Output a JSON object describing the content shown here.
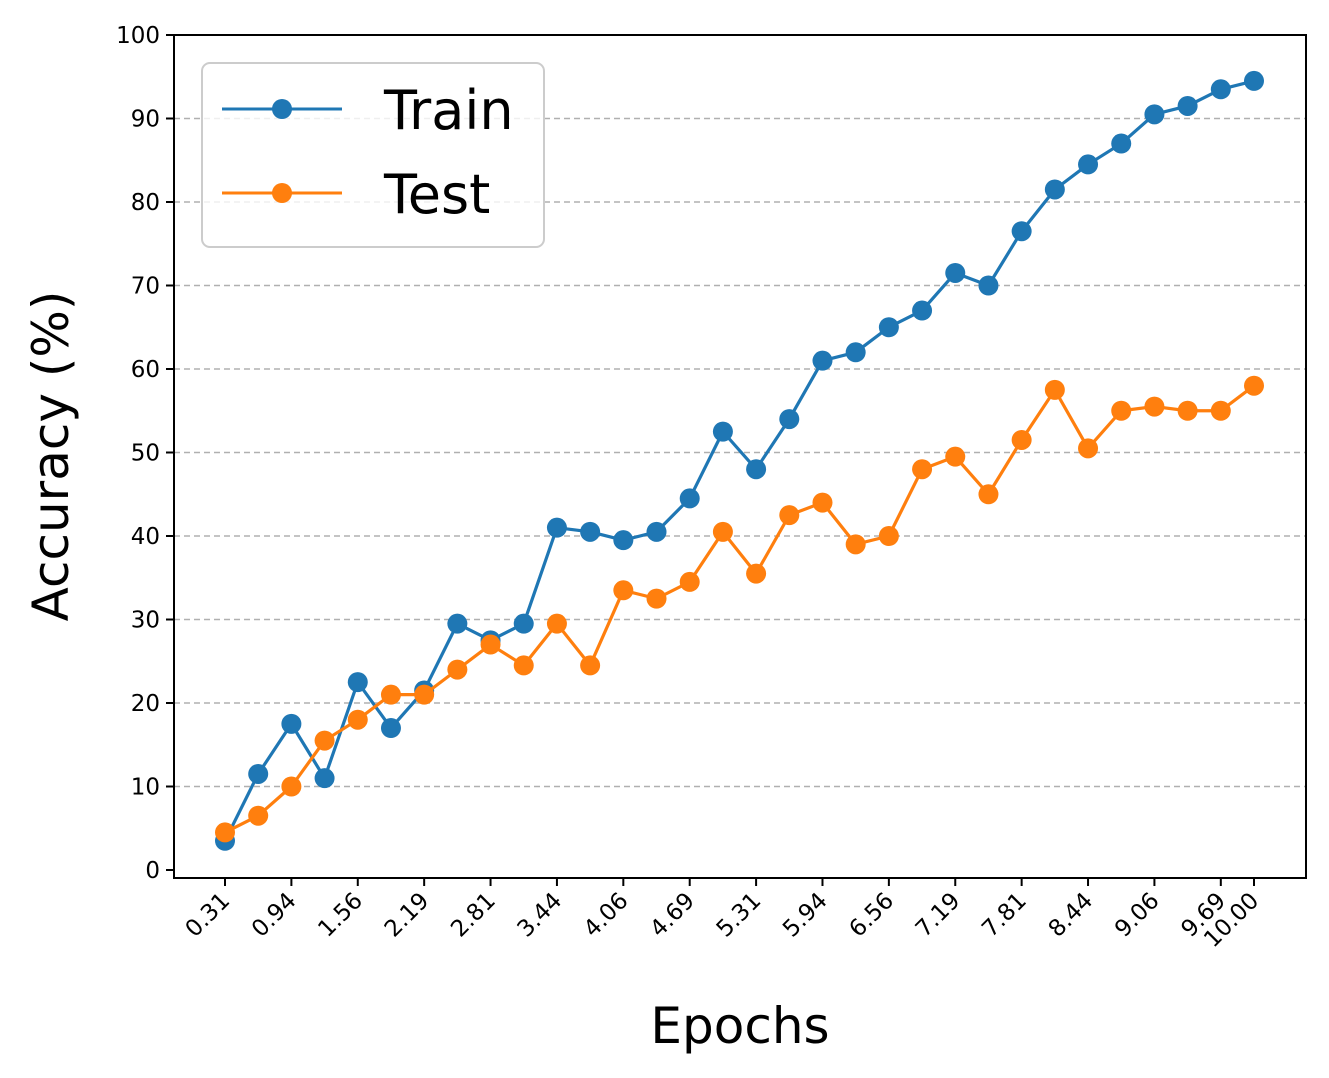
{
  "chart_data": {
    "type": "line",
    "title": "",
    "xlabel": "Epochs",
    "ylabel": "Accuracy (%)",
    "ylim": [
      0,
      100
    ],
    "yticks": [
      "0",
      "10",
      "20",
      "30",
      "40",
      "50",
      "60",
      "70",
      "80",
      "90",
      "100"
    ],
    "xticks": [
      "0.31",
      "0.94",
      "1.56",
      "2.19",
      "2.81",
      "3.44",
      "4.06",
      "4.69",
      "5.31",
      "5.94",
      "6.56",
      "7.19",
      "7.81",
      "8.44",
      "9.06",
      "9.69",
      "10.00"
    ],
    "xtick_values": [
      0.3125,
      0.9375,
      1.5625,
      2.1875,
      2.8125,
      3.4375,
      4.0625,
      4.6875,
      5.3125,
      5.9375,
      6.5625,
      7.1875,
      7.8125,
      8.4375,
      9.0625,
      9.6875,
      10.0
    ],
    "x": [
      0.3125,
      0.625,
      0.9375,
      1.25,
      1.5625,
      1.875,
      2.1875,
      2.5,
      2.8125,
      3.125,
      3.4375,
      3.75,
      4.0625,
      4.375,
      4.6875,
      5.0,
      5.3125,
      5.625,
      5.9375,
      6.25,
      6.5625,
      6.875,
      7.1875,
      7.5,
      7.8125,
      8.125,
      8.4375,
      8.75,
      9.0625,
      9.375,
      9.6875,
      10.0
    ],
    "series": [
      {
        "name": "Train",
        "color": "#1f77b4",
        "values": [
          3.5,
          11.5,
          17.5,
          11.0,
          22.5,
          17.0,
          21.5,
          29.5,
          27.5,
          29.5,
          41.0,
          40.5,
          39.5,
          40.5,
          44.5,
          52.5,
          48.0,
          54.0,
          61.0,
          62.0,
          65.0,
          67.0,
          71.5,
          70.0,
          76.5,
          81.5,
          84.5,
          87.0,
          90.5,
          91.5,
          93.5,
          94.5
        ]
      },
      {
        "name": "Test",
        "color": "#ff7f0e",
        "values": [
          4.5,
          6.5,
          10.0,
          15.5,
          18.0,
          21.0,
          21.0,
          24.0,
          27.0,
          24.5,
          29.5,
          24.5,
          33.5,
          32.5,
          34.5,
          40.5,
          35.5,
          42.5,
          44.0,
          39.0,
          40.0,
          48.0,
          49.5,
          45.0,
          51.5,
          57.5,
          50.5,
          55.0,
          55.5,
          55.0,
          55.0,
          58.0
        ]
      }
    ],
    "grid": "y-dashed",
    "legend": "top-left"
  }
}
